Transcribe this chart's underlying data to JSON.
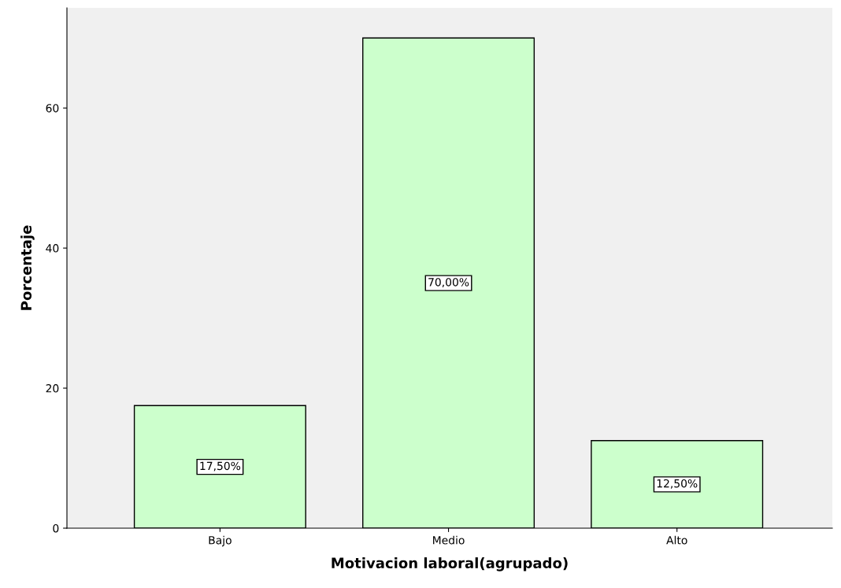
{
  "chart_data": {
    "type": "bar",
    "xlabel": "Motivacion laboral(agrupado)",
    "ylabel": "Porcentaje",
    "categories": [
      "Bajo",
      "Medio",
      "Alto"
    ],
    "values": [
      17.5,
      70.0,
      12.5
    ],
    "value_labels": [
      "17,50%",
      "70,00%",
      "12,50%"
    ],
    "color": "#ccffcc",
    "ylim": [
      0,
      74.3
    ],
    "yticks": [
      0,
      20,
      40,
      60
    ],
    "grid": false,
    "legend": false
  }
}
